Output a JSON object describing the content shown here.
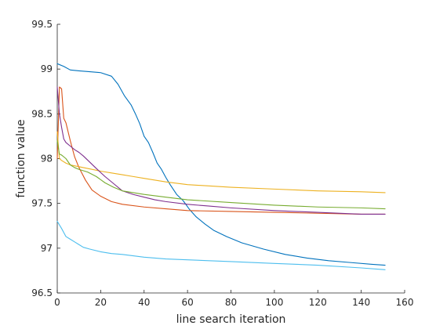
{
  "chart_data": {
    "type": "line",
    "title": "",
    "xlabel": "line search iteration",
    "ylabel": "function value",
    "xlim": [
      0,
      160
    ],
    "ylim": [
      96.5,
      99.5
    ],
    "xticks": [
      "0",
      "20",
      "40",
      "60",
      "80",
      "100",
      "120",
      "140",
      "160"
    ],
    "yticks": [
      "96.5",
      "97",
      "97.5",
      "98",
      "98.5",
      "99",
      "99.5"
    ],
    "grid": false,
    "legend": "none",
    "series": [
      {
        "color": "#0072BD",
        "x": [
          0,
          3,
          6,
          10,
          15,
          20,
          25,
          28,
          31,
          34,
          36,
          38,
          40,
          42,
          44,
          46,
          48,
          50,
          52,
          55,
          58,
          61,
          64,
          68,
          72,
          78,
          85,
          95,
          105,
          115,
          125,
          135,
          145,
          151
        ],
        "y": [
          99.06,
          99.03,
          98.99,
          98.98,
          98.97,
          98.96,
          98.92,
          98.83,
          98.7,
          98.6,
          98.5,
          98.39,
          98.25,
          98.18,
          98.07,
          97.95,
          97.88,
          97.79,
          97.71,
          97.6,
          97.53,
          97.43,
          97.35,
          97.27,
          97.2,
          97.13,
          97.06,
          96.99,
          96.93,
          96.89,
          96.86,
          96.84,
          96.82,
          96.81
        ]
      },
      {
        "color": "#D95319",
        "x": [
          0,
          1,
          2,
          3,
          4,
          6,
          8,
          10,
          13,
          16,
          20,
          25,
          30,
          40,
          50,
          60,
          80,
          100,
          120,
          140,
          151
        ],
        "y": [
          98.0,
          98.8,
          98.78,
          98.45,
          98.4,
          98.2,
          98.02,
          97.9,
          97.76,
          97.65,
          97.58,
          97.52,
          97.49,
          97.46,
          97.44,
          97.42,
          97.41,
          97.4,
          97.39,
          97.38,
          97.38
        ]
      },
      {
        "color": "#EDB120",
        "x": [
          0,
          1,
          2,
          4,
          6,
          8,
          12,
          16,
          20,
          25,
          30,
          35,
          40,
          50,
          60,
          80,
          100,
          120,
          140,
          151
        ],
        "y": [
          98.3,
          98.0,
          97.98,
          97.95,
          97.93,
          97.92,
          97.9,
          97.88,
          97.86,
          97.84,
          97.82,
          97.8,
          97.78,
          97.74,
          97.71,
          97.68,
          97.66,
          97.64,
          97.63,
          97.62
        ]
      },
      {
        "color": "#7E2F8E",
        "x": [
          0,
          1,
          2,
          3,
          4,
          6,
          8,
          10,
          12,
          15,
          18,
          22,
          26,
          30,
          35,
          40,
          45,
          50,
          60,
          70,
          80,
          100,
          120,
          140,
          151
        ],
        "y": [
          98.8,
          98.5,
          98.35,
          98.22,
          98.18,
          98.14,
          98.1,
          98.07,
          98.03,
          97.96,
          97.89,
          97.8,
          97.72,
          97.64,
          97.6,
          97.57,
          97.54,
          97.52,
          97.49,
          97.47,
          97.45,
          97.42,
          97.4,
          97.38,
          97.38
        ]
      },
      {
        "color": "#77AC30",
        "x": [
          0,
          1,
          2,
          4,
          6,
          8,
          10,
          14,
          18,
          22,
          26,
          30,
          40,
          50,
          60,
          80,
          100,
          120,
          140,
          151
        ],
        "y": [
          98.2,
          98.05,
          98.04,
          98.0,
          97.93,
          97.9,
          97.88,
          97.85,
          97.8,
          97.73,
          97.68,
          97.64,
          97.6,
          97.57,
          97.54,
          97.51,
          97.48,
          97.46,
          97.45,
          97.44
        ]
      },
      {
        "color": "#4DBEEE",
        "x": [
          0,
          2,
          4,
          6,
          8,
          10,
          12,
          15,
          20,
          25,
          30,
          40,
          50,
          60,
          80,
          100,
          120,
          140,
          151
        ],
        "y": [
          97.3,
          97.22,
          97.13,
          97.1,
          97.07,
          97.04,
          97.01,
          96.99,
          96.96,
          96.94,
          96.93,
          96.9,
          96.88,
          96.87,
          96.85,
          96.83,
          96.81,
          96.78,
          96.76
        ]
      }
    ]
  }
}
